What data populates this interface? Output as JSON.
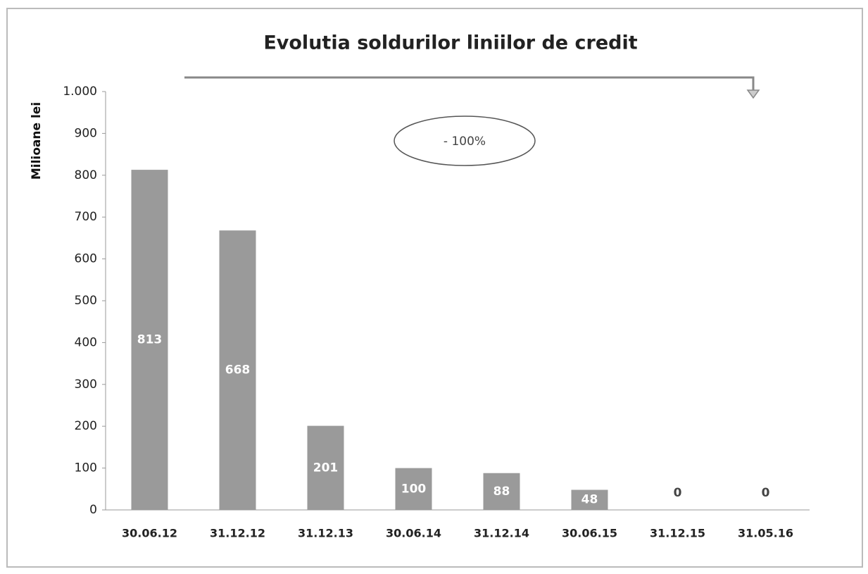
{
  "chart_data": {
    "type": "bar",
    "title": "Evolutia soldurilor liniilor de credit",
    "y_label": "Milioane lei",
    "annotation": "- 100%",
    "categories": [
      "30.06.12",
      "31.12.12",
      "31.12.13",
      "30.06.14",
      "31.12.14",
      "30.06.15",
      "31.12.15",
      "31.05.16"
    ],
    "values": [
      813,
      668,
      201,
      100,
      88,
      48,
      0,
      0
    ],
    "color": "#9a9a9a",
    "ylim": [
      0,
      1000
    ],
    "yticks": [
      0,
      100,
      200,
      300,
      400,
      500,
      600,
      700,
      800,
      900,
      {
        "value": 1000,
        "label": "1.000"
      }
    ],
    "grid": false
  }
}
